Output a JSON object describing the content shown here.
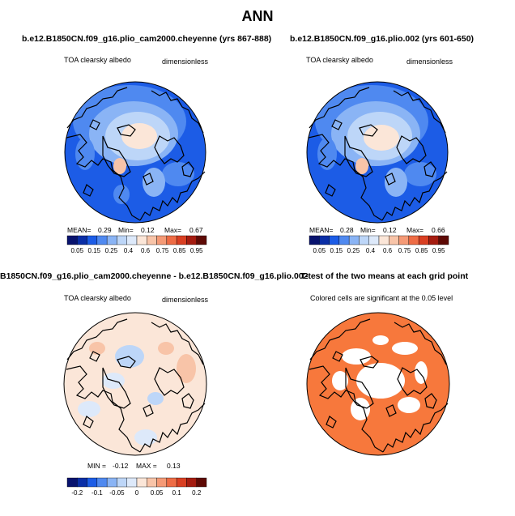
{
  "main_title": "ANN",
  "panels": {
    "p1": {
      "title": "b.e12.B1850CN.f09_g16.plio_cam2000.cheyenne (yrs 867-888)",
      "variable": "TOA clearsky albedo",
      "units": "dimensionless",
      "mean_label": "MEAN=",
      "mean": "0.29",
      "min_label": "Min=",
      "min": "0.12",
      "max_label": "Max=",
      "max": "0.67"
    },
    "p2": {
      "title": "b.e12.B1850CN.f09_g16.plio.002 (yrs 601-650)",
      "variable": "TOA clearsky albedo",
      "units": "dimensionless",
      "mean_label": "MEAN=",
      "mean": "0.28",
      "min_label": "Min=",
      "min": "0.12",
      "max_label": "Max=",
      "max": "0.66"
    },
    "p3": {
      "title": "B1850CN.f09_g16.plio_cam2000.cheyenne - b.e12.B1850CN.f09_g16.plio.002",
      "variable": "TOA clearsky albedo",
      "units": "dimensionless",
      "min_label": "MIN =",
      "min": "-0.12",
      "max_label": "MAX =",
      "max": "0.13"
    },
    "p4": {
      "title": "T-test of the two means at each grid point",
      "note": "Colored cells are significant at the 0.05 level"
    }
  },
  "colorbars": {
    "albedo_labels": [
      "0.05",
      "0.15",
      "0.25",
      "0.4",
      "0.6",
      "0.75",
      "0.85",
      "0.95"
    ],
    "albedo_colors": [
      "#08136e",
      "#0a2ea6",
      "#1c5ce6",
      "#4f89f0",
      "#8ab4f5",
      "#bdd6f8",
      "#dde9fa",
      "#fbe6d8",
      "#f8c4a8",
      "#f59a76",
      "#ee6c45",
      "#d93f22",
      "#a51c10",
      "#5e0a05"
    ],
    "diff_labels": [
      "-0.2",
      "-0.1",
      "-0.05",
      "0",
      "0.05",
      "0.1",
      "0.2"
    ],
    "diff_colors": [
      "#08136e",
      "#0a2ea6",
      "#1c5ce6",
      "#4f89f0",
      "#8ab4f5",
      "#bdd6f8",
      "#dde9fa",
      "#fbe6d8",
      "#f8c4a8",
      "#f59a76",
      "#ee6c45",
      "#d93f22",
      "#a51c10",
      "#5e0a05"
    ]
  },
  "colors": {
    "ocean_albedo": "#1c5ce6",
    "ice_albedo": "#dde9fa",
    "diff_background": "#fbe6d8",
    "significant": "#f7783c"
  }
}
